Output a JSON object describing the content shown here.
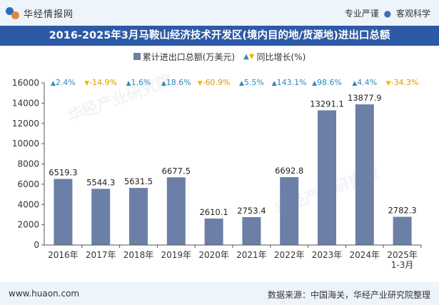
{
  "header": {
    "brand": "华经情报网",
    "slogan_left": "专业严谨",
    "slogan_sep": "●",
    "slogan_right": "客观科学"
  },
  "title": "2016-2025年3月马鞍山经济技术开发区(境内目的地/货源地)进出口总额",
  "legend": {
    "bar_label": "累计进出口总额(万美元)",
    "growth_label": "同比增长(%)"
  },
  "footer": {
    "site": "www.huaon.com",
    "source": "数据来源：中国海关，华经产业研究院整理"
  },
  "watermark": "华经产业研究院",
  "colors": {
    "bar": "#6b7fa7",
    "up": "#2e8ab8",
    "down": "#f0b800",
    "title_bg": "#2d5aa6",
    "band_bg": "#eef4fb"
  },
  "chart_data": {
    "type": "bar",
    "categories": [
      "2016年",
      "2017年",
      "2018年",
      "2019年",
      "2020年",
      "2021年",
      "2022年",
      "2023年",
      "2024年",
      "2025年\n1-3月"
    ],
    "series": [
      {
        "name": "累计进出口总额(万美元)",
        "values": [
          6519.3,
          5544.3,
          5631.5,
          6677.5,
          2610.1,
          2753.4,
          6692.8,
          13291.1,
          13877.9,
          2782.3
        ]
      }
    ],
    "growth": {
      "name": "同比增长(%)",
      "values": [
        2.4,
        -14.9,
        1.6,
        18.6,
        -60.9,
        5.5,
        143.1,
        98.6,
        4.4,
        -34.3
      ],
      "labels": [
        "2.4%",
        "-14.9%",
        "1.6%",
        "18.6%",
        "-60.9%",
        "5.5%",
        "143.1%",
        "98.6%",
        "4.4%",
        "-34.3%"
      ]
    },
    "data_labels": [
      "6519.3",
      "5544.3",
      "5631.5",
      "6677.5",
      "2610.1",
      "2753.4",
      "6692.8",
      "13291.1",
      "13877.9",
      "2782.3"
    ],
    "yticks": [
      "0",
      "2000",
      "4000",
      "6000",
      "8000",
      "10000",
      "12000",
      "14000",
      "16000"
    ],
    "ylim": [
      0,
      16000
    ],
    "legend_position": "top-center",
    "grid": false
  }
}
